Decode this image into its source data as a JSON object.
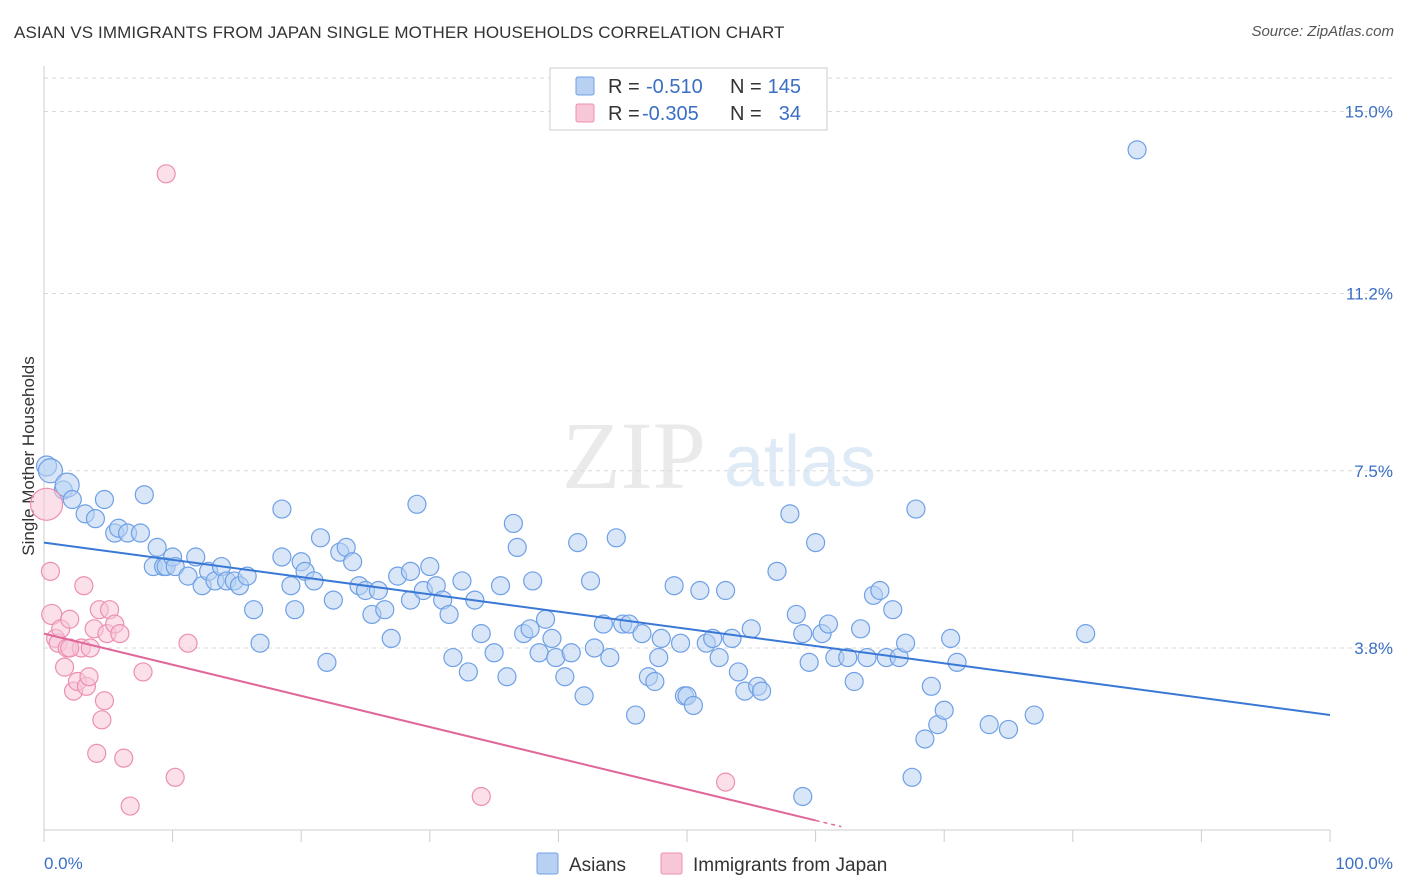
{
  "header": {
    "title": "ASIAN VS IMMIGRANTS FROM JAPAN SINGLE MOTHER HOUSEHOLDS CORRELATION CHART",
    "source": "Source: ZipAtlas.com"
  },
  "watermark": {
    "zip": "ZIP",
    "atlas": "atlas"
  },
  "stats_legend": [
    {
      "r_label": "R =",
      "r_value": "-0.510",
      "n_label": "N =",
      "n_value": "145",
      "color": "#6fa0e6",
      "fill": "#b8d1f3"
    },
    {
      "r_label": "R =",
      "r_value": "-0.305",
      "n_label": "N =",
      "n_value": "34",
      "color": "#ec8fb0",
      "fill": "#f7c7d8"
    }
  ],
  "bottom_legend": [
    {
      "label": "Asians",
      "color": "#6fa0e6",
      "fill": "#b8d1f3"
    },
    {
      "label": "Immigrants from Japan",
      "color": "#ec8fb0",
      "fill": "#f7c7d8"
    }
  ],
  "chart_data": {
    "type": "scatter",
    "title": "ASIAN VS IMMIGRANTS FROM JAPAN SINGLE MOTHER HOUSEHOLDS CORRELATION CHART",
    "xlabel": "",
    "ylabel": "Single Mother Households",
    "x_tick_labels": [
      "0.0%",
      "100.0%"
    ],
    "y_tick_labels": [
      "3.8%",
      "7.5%",
      "11.2%",
      "15.0%"
    ],
    "y_ticks": [
      3.8,
      7.5,
      11.2,
      15.0
    ],
    "xlim": [
      0,
      100
    ],
    "ylim": [
      0,
      15.7
    ],
    "grid": "horizontal dashed",
    "legend_placement": "top-center",
    "series": [
      {
        "name": "Asians",
        "color": "#6fa0e6",
        "fill": "#b8d1f3",
        "trend": {
          "x": [
            0,
            100
          ],
          "y": [
            6.0,
            2.4
          ]
        },
        "points": [
          [
            0.2,
            7.6,
            10
          ],
          [
            0.5,
            7.5,
            12
          ],
          [
            1.5,
            7.1,
            9
          ],
          [
            1.8,
            7.2,
            12
          ],
          [
            2.2,
            6.9,
            9
          ],
          [
            3.2,
            6.6,
            9
          ],
          [
            4.0,
            6.5,
            9
          ],
          [
            4.7,
            6.9,
            9
          ],
          [
            5.5,
            6.2,
            9
          ],
          [
            5.8,
            6.3,
            9
          ],
          [
            6.5,
            6.2,
            9
          ],
          [
            7.5,
            6.2,
            9
          ],
          [
            7.8,
            7.0,
            9
          ],
          [
            8.5,
            5.5,
            9
          ],
          [
            8.8,
            5.9,
            9
          ],
          [
            9.3,
            5.5,
            9
          ],
          [
            9.5,
            5.5,
            9
          ],
          [
            10.0,
            5.7,
            9
          ],
          [
            10.2,
            5.5,
            9
          ],
          [
            11.2,
            5.3,
            9
          ],
          [
            11.8,
            5.7,
            9
          ],
          [
            12.3,
            5.1,
            9
          ],
          [
            12.8,
            5.4,
            9
          ],
          [
            13.3,
            5.2,
            9
          ],
          [
            13.8,
            5.5,
            9
          ],
          [
            14.2,
            5.2,
            9
          ],
          [
            14.8,
            5.2,
            9
          ],
          [
            15.2,
            5.1,
            9
          ],
          [
            15.8,
            5.3,
            9
          ],
          [
            16.3,
            4.6,
            9
          ],
          [
            16.8,
            3.9,
            9
          ],
          [
            18.5,
            6.7,
            9
          ],
          [
            18.5,
            5.7,
            9
          ],
          [
            19.2,
            5.1,
            9
          ],
          [
            19.5,
            4.6,
            9
          ],
          [
            20.0,
            5.6,
            9
          ],
          [
            20.3,
            5.4,
            9
          ],
          [
            21.0,
            5.2,
            9
          ],
          [
            21.5,
            6.1,
            9
          ],
          [
            22.0,
            3.5,
            9
          ],
          [
            22.5,
            4.8,
            9
          ],
          [
            23.0,
            5.8,
            9
          ],
          [
            23.5,
            5.9,
            9
          ],
          [
            24.0,
            5.6,
            9
          ],
          [
            24.5,
            5.1,
            9
          ],
          [
            25.0,
            5.0,
            9
          ],
          [
            25.5,
            4.5,
            9
          ],
          [
            26.0,
            5.0,
            9
          ],
          [
            26.5,
            4.6,
            9
          ],
          [
            27.0,
            4.0,
            9
          ],
          [
            27.5,
            5.3,
            9
          ],
          [
            28.5,
            5.4,
            9
          ],
          [
            28.5,
            4.8,
            9
          ],
          [
            29.0,
            6.8,
            9
          ],
          [
            29.5,
            5.0,
            9
          ],
          [
            30.0,
            5.5,
            9
          ],
          [
            30.5,
            5.1,
            9
          ],
          [
            31.0,
            4.8,
            9
          ],
          [
            31.5,
            4.5,
            9
          ],
          [
            31.8,
            3.6,
            9
          ],
          [
            32.5,
            5.2,
            9
          ],
          [
            33.0,
            3.3,
            9
          ],
          [
            33.5,
            4.8,
            9
          ],
          [
            34.0,
            4.1,
            9
          ],
          [
            35.0,
            3.7,
            9
          ],
          [
            35.5,
            5.1,
            9
          ],
          [
            36.0,
            3.2,
            9
          ],
          [
            36.5,
            6.4,
            9
          ],
          [
            36.8,
            5.9,
            9
          ],
          [
            37.3,
            4.1,
            9
          ],
          [
            37.8,
            4.2,
            9
          ],
          [
            38.0,
            5.2,
            9
          ],
          [
            38.5,
            3.7,
            9
          ],
          [
            39.0,
            4.4,
            9
          ],
          [
            39.5,
            4.0,
            9
          ],
          [
            39.8,
            3.6,
            9
          ],
          [
            40.5,
            3.2,
            9
          ],
          [
            41.0,
            3.7,
            9
          ],
          [
            41.5,
            6.0,
            9
          ],
          [
            42.0,
            2.8,
            9
          ],
          [
            42.5,
            5.2,
            9
          ],
          [
            42.8,
            3.8,
            9
          ],
          [
            43.5,
            4.3,
            9
          ],
          [
            44.0,
            3.6,
            9
          ],
          [
            44.5,
            6.1,
            9
          ],
          [
            45.0,
            4.3,
            9
          ],
          [
            45.5,
            4.3,
            9
          ],
          [
            46.0,
            2.4,
            9
          ],
          [
            46.5,
            4.1,
            9
          ],
          [
            47.0,
            3.2,
            9
          ],
          [
            47.5,
            3.1,
            9
          ],
          [
            47.8,
            3.6,
            9
          ],
          [
            48.0,
            4.0,
            9
          ],
          [
            49.0,
            5.1,
            9
          ],
          [
            49.5,
            3.9,
            9
          ],
          [
            49.8,
            2.8,
            9
          ],
          [
            50.0,
            2.8,
            9
          ],
          [
            50.5,
            2.6,
            9
          ],
          [
            51.0,
            5.0,
            9
          ],
          [
            51.5,
            3.9,
            9
          ],
          [
            52.0,
            4.0,
            9
          ],
          [
            52.5,
            3.6,
            9
          ],
          [
            53.0,
            5.0,
            9
          ],
          [
            53.5,
            4.0,
            9
          ],
          [
            54.0,
            3.3,
            9
          ],
          [
            54.5,
            2.9,
            9
          ],
          [
            55.0,
            4.2,
            9
          ],
          [
            55.5,
            3.0,
            9
          ],
          [
            55.8,
            2.9,
            9
          ],
          [
            57.0,
            5.4,
            9
          ],
          [
            58.0,
            6.6,
            9
          ],
          [
            58.5,
            4.5,
            9
          ],
          [
            59.0,
            4.1,
            9
          ],
          [
            59.5,
            3.5,
            9
          ],
          [
            60.0,
            6.0,
            9
          ],
          [
            60.5,
            4.1,
            9
          ],
          [
            61.0,
            4.3,
            9
          ],
          [
            61.5,
            3.6,
            9
          ],
          [
            62.5,
            3.6,
            9
          ],
          [
            63.0,
            3.1,
            9
          ],
          [
            63.5,
            4.2,
            9
          ],
          [
            64.0,
            3.6,
            9
          ],
          [
            64.5,
            4.9,
            9
          ],
          [
            65.0,
            5.0,
            9
          ],
          [
            65.5,
            3.6,
            9
          ],
          [
            66.0,
            4.6,
            9
          ],
          [
            66.5,
            3.6,
            9
          ],
          [
            67.0,
            3.9,
            9
          ],
          [
            67.5,
            1.1,
            9
          ],
          [
            67.8,
            6.7,
            9
          ],
          [
            68.5,
            1.9,
            9
          ],
          [
            69.0,
            3.0,
            9
          ],
          [
            69.5,
            2.2,
            9
          ],
          [
            70.0,
            2.5,
            9
          ],
          [
            70.5,
            4.0,
            9
          ],
          [
            71.0,
            3.5,
            9
          ],
          [
            73.5,
            2.2,
            9
          ],
          [
            75.0,
            2.1,
            9
          ],
          [
            77.0,
            2.4,
            9
          ],
          [
            81.0,
            4.1,
            9
          ],
          [
            85.0,
            14.2,
            9
          ],
          [
            59.0,
            0.7,
            9
          ]
        ]
      },
      {
        "name": "Immigrants from Japan",
        "color": "#ec8fb0",
        "fill": "#f7c7d8",
        "trend": {
          "x": [
            0,
            60
          ],
          "y": [
            4.1,
            0.2
          ]
        },
        "trend_dashed": {
          "x": [
            60,
            62
          ],
          "y": [
            0.2,
            0.07
          ]
        },
        "points": [
          [
            0.2,
            6.8,
            16
          ],
          [
            0.5,
            5.4,
            9
          ],
          [
            0.6,
            4.5,
            10
          ],
          [
            0.9,
            4.0,
            9
          ],
          [
            1.1,
            3.9,
            9
          ],
          [
            1.3,
            4.2,
            9
          ],
          [
            1.6,
            3.4,
            9
          ],
          [
            1.8,
            3.8,
            9
          ],
          [
            2.0,
            4.4,
            9
          ],
          [
            2.3,
            2.9,
            9
          ],
          [
            2.6,
            3.1,
            9
          ],
          [
            2.9,
            3.8,
            9
          ],
          [
            3.1,
            5.1,
            9
          ],
          [
            3.3,
            3.0,
            9
          ],
          [
            3.5,
            3.2,
            9
          ],
          [
            3.6,
            3.8,
            9
          ],
          [
            3.9,
            4.2,
            9
          ],
          [
            4.1,
            1.6,
            9
          ],
          [
            4.3,
            4.6,
            9
          ],
          [
            4.5,
            2.3,
            9
          ],
          [
            4.7,
            2.7,
            9
          ],
          [
            4.9,
            4.1,
            9
          ],
          [
            5.1,
            4.6,
            9
          ],
          [
            5.5,
            4.3,
            9
          ],
          [
            5.9,
            4.1,
            9
          ],
          [
            6.2,
            1.5,
            9
          ],
          [
            6.7,
            0.5,
            9
          ],
          [
            7.7,
            3.3,
            9
          ],
          [
            9.5,
            13.7,
            9
          ],
          [
            10.2,
            1.1,
            9
          ],
          [
            11.2,
            3.9,
            9
          ],
          [
            34.0,
            0.7,
            9
          ],
          [
            53.0,
            1.0,
            9
          ],
          [
            2.0,
            3.8,
            9
          ]
        ]
      }
    ]
  }
}
